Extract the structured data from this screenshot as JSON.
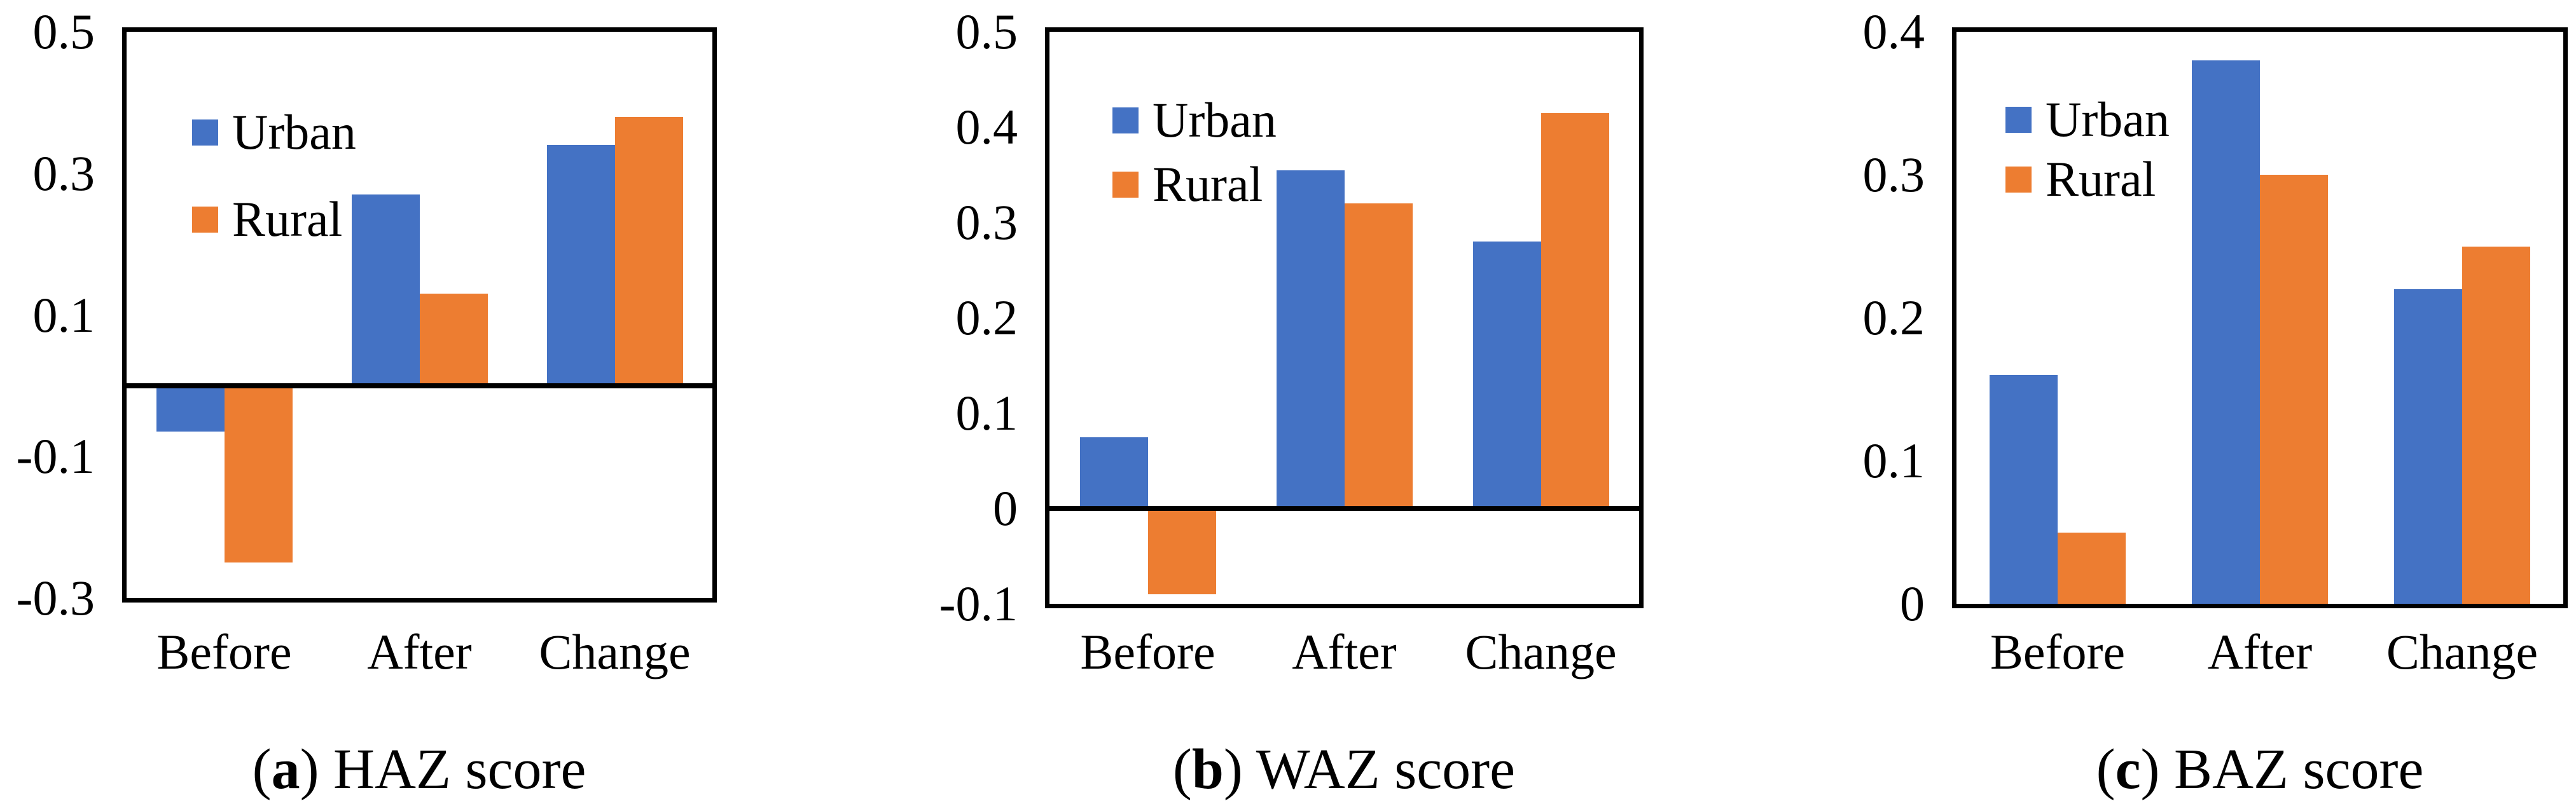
{
  "figure": {
    "background": "#FFFFFF",
    "axis_color": "#000000",
    "text_color": "#000000",
    "series_colors": {
      "urban": "#4472C4",
      "rural": "#ED7D31"
    }
  },
  "chart_data": [
    {
      "id": "a",
      "type": "bar",
      "title": "(a) HAZ score",
      "caption": {
        "letter": "a",
        "text": "HAZ score"
      },
      "categories": [
        "Before",
        "After",
        "Change"
      ],
      "series": [
        {
          "name": "Urban",
          "color": "#4472C4",
          "values": [
            -0.065,
            0.27,
            0.34
          ]
        },
        {
          "name": "Rural",
          "color": "#ED7D31",
          "values": [
            -0.25,
            0.13,
            0.38
          ]
        }
      ],
      "ylim": [
        -0.3,
        0.5
      ],
      "yticks": [
        {
          "value": 0.5,
          "label": "0.5"
        },
        {
          "value": 0.3,
          "label": "0.3"
        },
        {
          "value": 0.1,
          "label": "0.1"
        },
        {
          "value": -0.1,
          "label": "-0.1"
        },
        {
          "value": -0.3,
          "label": "-0.3"
        }
      ],
      "legend_position": "inside-top-left",
      "grid": false
    },
    {
      "id": "b",
      "type": "bar",
      "title": "(b) WAZ score",
      "caption": {
        "letter": "b",
        "text": "WAZ score"
      },
      "categories": [
        "Before",
        "After",
        "Change"
      ],
      "series": [
        {
          "name": "Urban",
          "color": "#4472C4",
          "values": [
            0.075,
            0.355,
            0.28
          ]
        },
        {
          "name": "Rural",
          "color": "#ED7D31",
          "values": [
            -0.09,
            0.32,
            0.415
          ]
        }
      ],
      "ylim": [
        -0.1,
        0.5
      ],
      "yticks": [
        {
          "value": 0.5,
          "label": "0.5"
        },
        {
          "value": 0.4,
          "label": "0.4"
        },
        {
          "value": 0.3,
          "label": "0.3"
        },
        {
          "value": 0.2,
          "label": "0.2"
        },
        {
          "value": 0.1,
          "label": "0.1"
        },
        {
          "value": 0,
          "label": "0"
        },
        {
          "value": -0.1,
          "label": "-0.1"
        }
      ],
      "legend_position": "inside-top-left",
      "grid": false
    },
    {
      "id": "c",
      "type": "bar",
      "title": "(c) BAZ score",
      "caption": {
        "letter": "c",
        "text": "BAZ score"
      },
      "categories": [
        "Before",
        "After",
        "Change"
      ],
      "series": [
        {
          "name": "Urban",
          "color": "#4472C4",
          "values": [
            0.16,
            0.38,
            0.22
          ]
        },
        {
          "name": "Rural",
          "color": "#ED7D31",
          "values": [
            0.05,
            0.3,
            0.25
          ]
        }
      ],
      "ylim": [
        0,
        0.4
      ],
      "yticks": [
        {
          "value": 0.4,
          "label": "0.4"
        },
        {
          "value": 0.3,
          "label": "0.3"
        },
        {
          "value": 0.2,
          "label": "0.2"
        },
        {
          "value": 0.1,
          "label": "0.1"
        },
        {
          "value": 0,
          "label": "0"
        }
      ],
      "legend_position": "inside-top-left",
      "grid": false
    }
  ]
}
